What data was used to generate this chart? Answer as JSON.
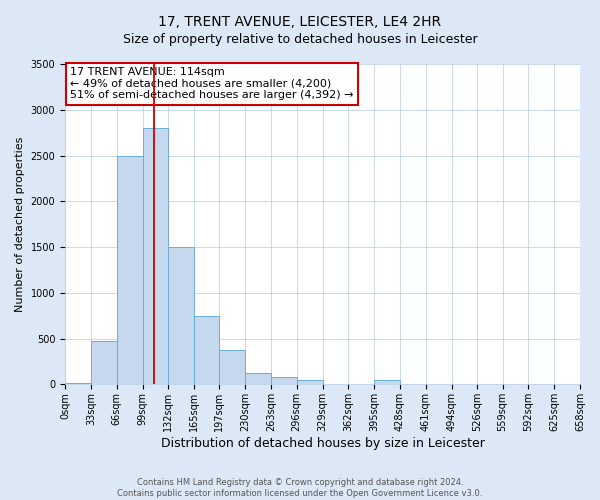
{
  "title": "17, TRENT AVENUE, LEICESTER, LE4 2HR",
  "subtitle": "Size of property relative to detached houses in Leicester",
  "xlabel": "Distribution of detached houses by size in Leicester",
  "ylabel": "Number of detached properties",
  "bin_edges": [
    0,
    33,
    66,
    99,
    132,
    165,
    197,
    230,
    263,
    296,
    329,
    362,
    395,
    428,
    461,
    494,
    526,
    559,
    592,
    625,
    658
  ],
  "bar_heights": [
    20,
    470,
    2500,
    2800,
    1500,
    750,
    380,
    130,
    80,
    50,
    0,
    0,
    50,
    0,
    0,
    0,
    0,
    0,
    0,
    0
  ],
  "bar_color": "#c5d8ee",
  "bar_edgecolor": "#6baed6",
  "bar_linewidth": 0.7,
  "vline_x": 114,
  "vline_color": "#cc0000",
  "vline_linewidth": 1.3,
  "annotation_title": "17 TRENT AVENUE: 114sqm",
  "annotation_line1": "← 49% of detached houses are smaller (4,200)",
  "annotation_line2": "51% of semi-detached houses are larger (4,392) →",
  "annotation_box_edgecolor": "#cc0000",
  "annotation_box_facecolor": "#ffffff",
  "ylim": [
    0,
    3500
  ],
  "yticks": [
    0,
    500,
    1000,
    1500,
    2000,
    2500,
    3000,
    3500
  ],
  "fig_background_color": "#dce8f5",
  "plot_background_color": "#ffffff",
  "footer_line1": "Contains HM Land Registry data © Crown copyright and database right 2024.",
  "footer_line2": "Contains public sector information licensed under the Open Government Licence v3.0.",
  "title_fontsize": 10,
  "subtitle_fontsize": 9,
  "xlabel_fontsize": 9,
  "ylabel_fontsize": 8,
  "tick_fontsize": 7,
  "footer_fontsize": 6,
  "annotation_fontsize": 8
}
